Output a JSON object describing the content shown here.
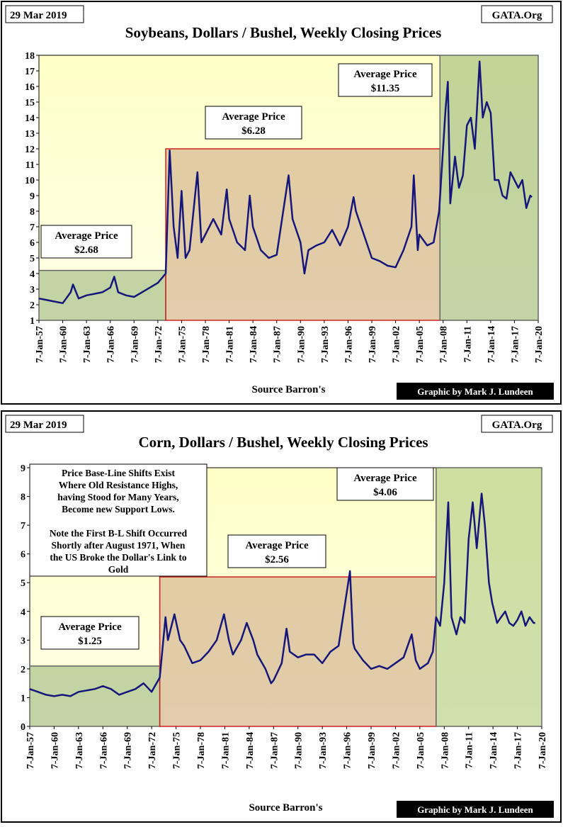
{
  "chart_data": [
    {
      "type": "line",
      "date_label": "29 Mar 2019",
      "source_label": "GATA.Org",
      "title": "Soybeans, Dollars / Bushel, Weekly Closing Prices",
      "x_label": "Source Barron's",
      "credit": "Graphic by Mark J. Lundeen",
      "xlim": [
        1957,
        2020
      ],
      "ylim": [
        1,
        18
      ],
      "xticks": [
        {
          "value": 1957,
          "label": "7-Jan-57"
        },
        {
          "value": 1960,
          "label": "7-Jan-60"
        },
        {
          "value": 1963,
          "label": "7-Jan-63"
        },
        {
          "value": 1966,
          "label": "7-Jan-66"
        },
        {
          "value": 1969,
          "label": "7-Jan-69"
        },
        {
          "value": 1972,
          "label": "7-Jan-72"
        },
        {
          "value": 1975,
          "label": "7-Jan-75"
        },
        {
          "value": 1978,
          "label": "7-Jan-78"
        },
        {
          "value": 1981,
          "label": "7-Jan-81"
        },
        {
          "value": 1984,
          "label": "7-Jan-84"
        },
        {
          "value": 1987,
          "label": "7-Jan-87"
        },
        {
          "value": 1990,
          "label": "7-Jan-90"
        },
        {
          "value": 1993,
          "label": "7-Jan-93"
        },
        {
          "value": 1996,
          "label": "7-Jan-96"
        },
        {
          "value": 1999,
          "label": "7-Jan-99"
        },
        {
          "value": 2002,
          "label": "7-Jan-02"
        },
        {
          "value": 2005,
          "label": "7-Jan-05"
        },
        {
          "value": 2008,
          "label": "7-Jan-08"
        },
        {
          "value": 2011,
          "label": "7-Jan-11"
        },
        {
          "value": 2014,
          "label": "7-Jan-14"
        },
        {
          "value": 2017,
          "label": "7-Jan-17"
        },
        {
          "value": 2020,
          "label": "7-Jan-20"
        }
      ],
      "yticks": [
        1,
        2,
        3,
        4,
        5,
        6,
        7,
        8,
        9,
        10,
        11,
        12,
        13,
        14,
        15,
        16,
        17,
        18
      ],
      "regions": [
        {
          "x": [
            1957,
            1973
          ],
          "top": 4.2,
          "color": "#8fb070",
          "label": [
            "Average Price",
            "$2.68"
          ]
        },
        {
          "x": [
            1973,
            2007.6
          ],
          "top": 12,
          "color": "#c9a37a",
          "label": [
            "Average Price",
            "$6.28"
          ]
        },
        {
          "x": [
            2007.6,
            2020
          ],
          "top": 18,
          "color": "#8fb070",
          "label": [
            "Average Price",
            "$11.35"
          ]
        }
      ],
      "x": [
        1957,
        1958,
        1959,
        1960,
        1961,
        1961.3,
        1962,
        1963,
        1964,
        1965,
        1966,
        1966.5,
        1967,
        1968,
        1969,
        1970,
        1971,
        1972,
        1973,
        1973.5,
        1974,
        1974.5,
        1975,
        1975.5,
        1976,
        1977,
        1977.5,
        1978,
        1979,
        1980,
        1980.7,
        1981,
        1982,
        1983,
        1983.6,
        1984,
        1985,
        1986,
        1987,
        1988.5,
        1989,
        1990,
        1990.5,
        1991,
        1992,
        1993,
        1994,
        1995,
        1996,
        1996.7,
        1997,
        1998,
        1999,
        2000,
        2001,
        2002,
        2003,
        2004,
        2004.3,
        2004.8,
        2005,
        2006,
        2006.8,
        2007.5,
        2008.3,
        2008.6,
        2008.9,
        2009.5,
        2010,
        2010.5,
        2011,
        2011.5,
        2012,
        2012.6,
        2013,
        2013.5,
        2014,
        2014.5,
        2015,
        2015.5,
        2016,
        2016.5,
        2017,
        2017.5,
        2018,
        2018.5,
        2019,
        2019.2
      ],
      "series": [
        {
          "name": "Soybeans",
          "color": "#16167a",
          "values": [
            2.4,
            2.3,
            2.2,
            2.1,
            2.8,
            3.3,
            2.4,
            2.6,
            2.7,
            2.8,
            3.1,
            3.8,
            2.8,
            2.6,
            2.5,
            2.8,
            3.1,
            3.4,
            4.0,
            11.9,
            7,
            5,
            9.3,
            5,
            5.5,
            10.5,
            6,
            6.5,
            7.5,
            6.5,
            9.4,
            7.5,
            6,
            5.5,
            9.0,
            7,
            5.5,
            5,
            5.2,
            10.3,
            7.5,
            6,
            4.0,
            5.5,
            5.8,
            6,
            6.8,
            5.8,
            7,
            8.9,
            8,
            6.5,
            5,
            4.8,
            4.5,
            4.4,
            5.5,
            7,
            10.3,
            5.5,
            6.5,
            5.8,
            6,
            8,
            14.5,
            16.3,
            8.5,
            11.5,
            9.5,
            10.3,
            13.5,
            14,
            12,
            17.6,
            14,
            15,
            14.3,
            10,
            10,
            9,
            8.8,
            10.5,
            10,
            9.5,
            10,
            8.2,
            9,
            8.9
          ]
        }
      ]
    },
    {
      "type": "line",
      "date_label": "29 Mar 2019",
      "source_label": "GATA.Org",
      "title": "Corn, Dollars / Bushel, Weekly Closing Prices",
      "x_label": "Source Barron's",
      "credit": "Graphic by Mark J. Lundeen",
      "note": [
        "Price Base-Line Shifts Exist",
        "Where Old Resistance Highs,",
        "having Stood for Many Years,",
        "Become new Support Lows.",
        "",
        "Note the First B-L Shift Occurred",
        "Shortly after August 1971, When",
        "the US Broke the Dollar's Link to",
        "Gold"
      ],
      "xlim": [
        1957,
        2020
      ],
      "ylim": [
        0,
        9
      ],
      "xticks": [
        {
          "value": 1957,
          "label": "7-Jan-57"
        },
        {
          "value": 1960,
          "label": "7-Jan-60"
        },
        {
          "value": 1963,
          "label": "7-Jan-63"
        },
        {
          "value": 1966,
          "label": "7-Jan-66"
        },
        {
          "value": 1969,
          "label": "7-Jan-69"
        },
        {
          "value": 1972,
          "label": "7-Jan-72"
        },
        {
          "value": 1975,
          "label": "7-Jan-75"
        },
        {
          "value": 1978,
          "label": "7-Jan-78"
        },
        {
          "value": 1981,
          "label": "7-Jan-81"
        },
        {
          "value": 1984,
          "label": "7-Jan-84"
        },
        {
          "value": 1987,
          "label": "7-Jan-87"
        },
        {
          "value": 1990,
          "label": "7-Jan-90"
        },
        {
          "value": 1993,
          "label": "7-Jan-93"
        },
        {
          "value": 1996,
          "label": "7-Jan-96"
        },
        {
          "value": 1999,
          "label": "7-Jan-99"
        },
        {
          "value": 2002,
          "label": "7-Jan-02"
        },
        {
          "value": 2005,
          "label": "7-Jan-05"
        },
        {
          "value": 2008,
          "label": "7-Jan-08"
        },
        {
          "value": 2011,
          "label": "7-Jan-11"
        },
        {
          "value": 2014,
          "label": "7-Jan-14"
        },
        {
          "value": 2017,
          "label": "7-Jan-17"
        },
        {
          "value": 2020,
          "label": "7-Jan-20"
        }
      ],
      "yticks": [
        0,
        1,
        2,
        3,
        4,
        5,
        6,
        7,
        8,
        9
      ],
      "regions": [
        {
          "x": [
            1957,
            1973
          ],
          "top": 2.1,
          "color": "#8fb070",
          "label": [
            "Average Price",
            "$1.25"
          ]
        },
        {
          "x": [
            1973,
            2007
          ],
          "top": 5.2,
          "color": "#c9a37a",
          "label": [
            "Average Price",
            "$2.56"
          ]
        },
        {
          "x": [
            2007,
            2020
          ],
          "top": 9,
          "color": "#a8c47e",
          "label": [
            "Average Price",
            "$4.06"
          ]
        }
      ],
      "x": [
        1957,
        1958,
        1959,
        1960,
        1961,
        1962,
        1963,
        1964,
        1965,
        1966,
        1967,
        1968,
        1969,
        1970,
        1971,
        1972,
        1973,
        1973.7,
        1974,
        1974.8,
        1975.5,
        1976,
        1977,
        1978,
        1979,
        1980,
        1980.9,
        1981.5,
        1982,
        1983,
        1983.7,
        1984.5,
        1985,
        1986,
        1986.7,
        1987,
        1988,
        1988.6,
        1989,
        1990,
        1991,
        1992,
        1993,
        1994,
        1995,
        1996.4,
        1996.8,
        1997,
        1998,
        1999,
        2000,
        2001,
        2002,
        2003,
        2004,
        2004.5,
        2005,
        2006,
        2006.6,
        2007,
        2007.5,
        2008,
        2008.5,
        2008.9,
        2009.5,
        2010,
        2010.5,
        2011,
        2011.5,
        2012,
        2012.6,
        2013,
        2013.5,
        2013.9,
        2014.5,
        2015,
        2015.5,
        2016,
        2016.5,
        2017,
        2017.5,
        2018,
        2018.5,
        2019,
        2019.2
      ],
      "series": [
        {
          "name": "Corn",
          "color": "#16167a",
          "values": [
            1.3,
            1.2,
            1.1,
            1.05,
            1.1,
            1.05,
            1.2,
            1.25,
            1.3,
            1.4,
            1.3,
            1.1,
            1.2,
            1.3,
            1.5,
            1.2,
            1.7,
            3.8,
            3,
            3.9,
            3,
            2.8,
            2.2,
            2.3,
            2.6,
            3,
            3.9,
            3,
            2.5,
            3,
            3.6,
            3,
            2.5,
            2,
            1.5,
            1.6,
            2.2,
            3.4,
            2.6,
            2.4,
            2.5,
            2.5,
            2.2,
            2.6,
            2.8,
            5.4,
            2.9,
            2.7,
            2.3,
            2,
            2.1,
            2,
            2.2,
            2.4,
            3.2,
            2.3,
            2,
            2.2,
            2.6,
            3.8,
            3.5,
            5,
            7.8,
            3.8,
            3.2,
            3.8,
            3.6,
            6.5,
            7.8,
            6.2,
            8.1,
            7,
            5,
            4.3,
            3.6,
            3.8,
            4,
            3.6,
            3.5,
            3.7,
            4.0,
            3.5,
            3.8,
            3.6,
            3.6
          ]
        }
      ]
    }
  ]
}
